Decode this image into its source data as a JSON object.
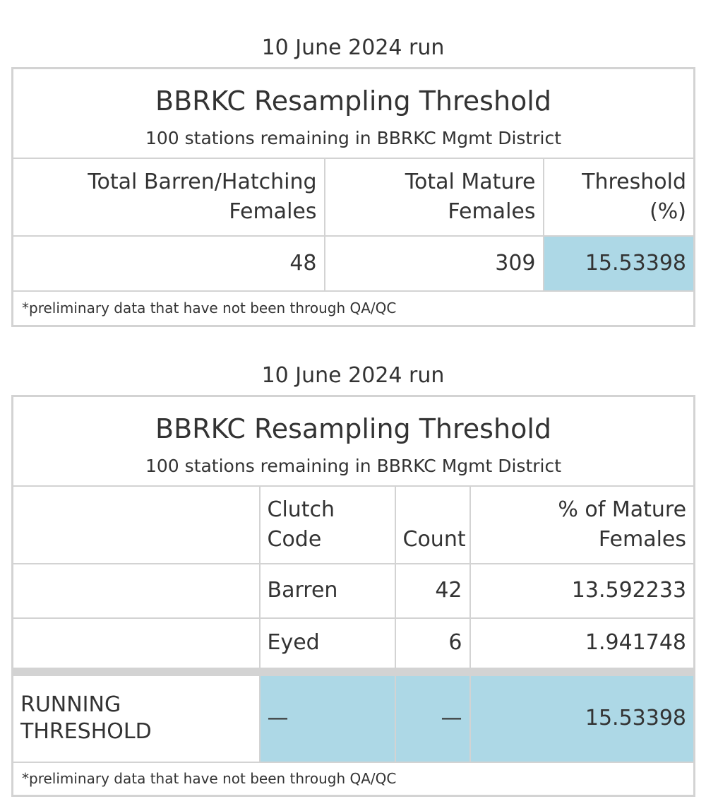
{
  "table1": {
    "caption": "10 June 2024 run",
    "title": "BBRKC Resampling Threshold",
    "subtitle": "100 stations remaining in BBRKC Mgmt District",
    "headers": [
      "Total Barren/Hatching Females",
      "Total Mature Females",
      "Threshold (%)"
    ],
    "headers_lines": [
      [
        "Total Barren/Hatching",
        "Females"
      ],
      [
        "Total Mature",
        "Females"
      ],
      [
        "Threshold",
        "(%)"
      ]
    ],
    "row": [
      "48",
      "309",
      "15.53398"
    ],
    "footnote": "*preliminary data that have not been through QA/QC"
  },
  "table2": {
    "caption": "10 June 2024 run",
    "title": "BBRKC Resampling Threshold",
    "subtitle": "100 stations remaining in BBRKC Mgmt District",
    "headers_lines": [
      [
        ""
      ],
      [
        "Clutch",
        "Code"
      ],
      [
        "Count"
      ],
      [
        "% of Mature",
        "Females"
      ]
    ],
    "rows": [
      {
        "label": "",
        "code": "Barren",
        "count": "42",
        "pct": "13.592233"
      },
      {
        "label": "",
        "code": "Eyed",
        "count": "6",
        "pct": "1.941748"
      }
    ],
    "running": {
      "label_lines": [
        "RUNNING",
        "THRESHOLD"
      ],
      "code": "—",
      "count": "—",
      "pct": "15.53398"
    },
    "footnote": "*preliminary data that have not been through QA/QC"
  },
  "colors": {
    "highlight": "#add8e6",
    "border": "#d3d3d3",
    "text": "#333333"
  }
}
